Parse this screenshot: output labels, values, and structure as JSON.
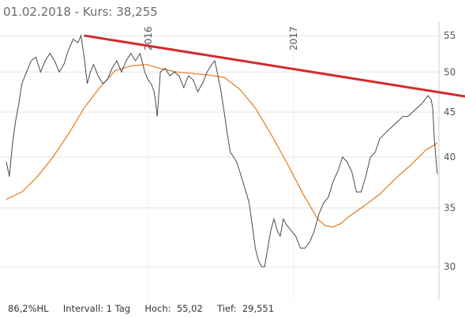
{
  "header": {
    "date": "01.02.2018",
    "separator": " - ",
    "kurs_label": "Kurs: ",
    "kurs_value": "38,255"
  },
  "footer": {
    "hl": "86,2%HL",
    "interval": "Intervall: 1 Tag",
    "hoch": "Hoch:  55,02",
    "tief": "Tief:  29,551"
  },
  "colors": {
    "price": "#4a4a4a",
    "moving_average": "#e07a1f",
    "trendline": "#d42a2a",
    "grid": "#e3e3e3"
  },
  "chart_data": {
    "type": "line",
    "y_scale": "log",
    "ylim": [
      27.5,
      57
    ],
    "y_ticks": [
      30,
      35,
      40,
      45,
      50,
      55
    ],
    "x_axis_markers": [
      "2016",
      "2017"
    ],
    "series": [
      {
        "kind": "price",
        "x": [
          0,
          4,
          8,
          12,
          16,
          20,
          26,
          32,
          38,
          44,
          50,
          56,
          62,
          68,
          74,
          80,
          86,
          92,
          96,
          100,
          104,
          108,
          112,
          118,
          124,
          130,
          136,
          142,
          148,
          154,
          160,
          166,
          172,
          178,
          182,
          186,
          190,
          194,
          198,
          204,
          210,
          216,
          222,
          228,
          234,
          240,
          246,
          252,
          258,
          264,
          268,
          272,
          276,
          280,
          284,
          288,
          292,
          296,
          300,
          304,
          308,
          312,
          316,
          320,
          324,
          328,
          332,
          336,
          340,
          344,
          348,
          352,
          356,
          360,
          366,
          372,
          378,
          384,
          390,
          396,
          402,
          408,
          414,
          420,
          426,
          432,
          438,
          444,
          450,
          456,
          462,
          468,
          474,
          480,
          486,
          492,
          498,
          504,
          510,
          516,
          522,
          528,
          534,
          538,
          542,
          546,
          548,
          550,
          552,
          554
        ],
        "values": [
          39.5,
          38.0,
          41.5,
          44.0,
          46.0,
          48.5,
          50.0,
          51.5,
          52.0,
          50.0,
          51.5,
          52.5,
          51.5,
          50.0,
          51.0,
          53.0,
          54.5,
          54.0,
          55.0,
          52.0,
          48.5,
          50.0,
          51.0,
          49.5,
          48.5,
          49.0,
          50.5,
          51.5,
          50.0,
          51.5,
          52.5,
          51.5,
          52.5,
          50.0,
          49.0,
          48.5,
          47.5,
          44.5,
          50.0,
          50.5,
          49.5,
          50.0,
          49.5,
          48.0,
          49.5,
          49.0,
          47.5,
          48.5,
          50.0,
          51.0,
          51.5,
          49.5,
          47.5,
          45.0,
          42.5,
          40.5,
          40.0,
          39.5,
          38.5,
          37.5,
          36.5,
          35.5,
          33.5,
          31.5,
          30.5,
          30.0,
          30.0,
          31.5,
          33.0,
          34.0,
          33.0,
          32.5,
          34.0,
          33.5,
          33.0,
          32.5,
          31.5,
          31.5,
          32.0,
          33.0,
          34.5,
          35.5,
          36.0,
          37.5,
          38.5,
          40.0,
          39.5,
          38.5,
          36.5,
          36.5,
          38.0,
          40.0,
          40.5,
          42.0,
          42.5,
          43.0,
          43.5,
          44.0,
          44.5,
          44.5,
          45.0,
          45.5,
          46.0,
          46.5,
          47.0,
          46.5,
          45.5,
          42.0,
          40.0,
          38.255
        ]
      },
      {
        "kind": "moving_average",
        "x": [
          0,
          20,
          40,
          60,
          80,
          100,
          120,
          140,
          160,
          180,
          200,
          220,
          240,
          260,
          280,
          300,
          320,
          340,
          360,
          380,
          400,
          410,
          420,
          430,
          440,
          460,
          480,
          500,
          520,
          540,
          554
        ],
        "values": [
          35.8,
          36.5,
          38.0,
          40.0,
          42.5,
          45.5,
          48.0,
          50.2,
          50.8,
          51.0,
          50.4,
          50.0,
          49.8,
          49.6,
          49.3,
          47.8,
          45.5,
          42.5,
          39.5,
          36.5,
          34.0,
          33.4,
          33.3,
          33.6,
          34.2,
          35.2,
          36.3,
          37.8,
          39.2,
          40.8,
          41.5
        ]
      },
      {
        "kind": "trendline",
        "x": [
          100,
          589
        ],
        "values": [
          55.02,
          46.9
        ]
      }
    ]
  }
}
